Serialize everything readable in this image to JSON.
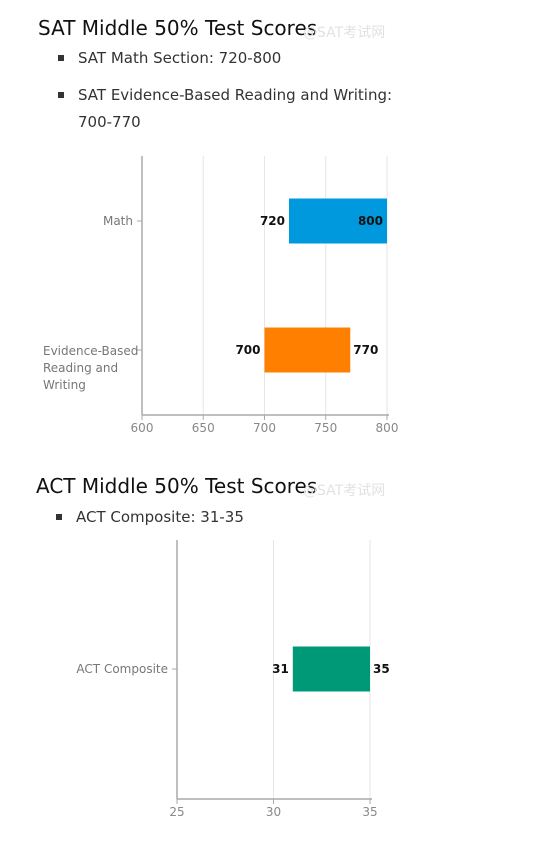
{
  "sat": {
    "title": "SAT Middle 50% Test Scores",
    "watermark": "@SAT考试网",
    "bullets": [
      "SAT Math Section: 720-800",
      "SAT Evidence-Based Reading and Writing: 700-770"
    ]
  },
  "act": {
    "title": "ACT Middle 50% Test Scores",
    "watermark": "@SAT考试网",
    "bullets": [
      "ACT Composite: 31-35"
    ]
  },
  "chart_data": [
    {
      "type": "bar",
      "orientation": "horizontal-range",
      "categories": [
        "Math",
        "Evidence-Based Reading and Writing"
      ],
      "ranges": [
        [
          720,
          800
        ],
        [
          700,
          770
        ]
      ],
      "colors": [
        "#0099dd",
        "#ff8000"
      ],
      "xlim": [
        600,
        800
      ],
      "xticks": [
        600,
        650,
        700,
        750,
        800
      ],
      "grid": true
    },
    {
      "type": "bar",
      "orientation": "horizontal-range",
      "categories": [
        "ACT Composite"
      ],
      "ranges": [
        [
          31,
          35
        ]
      ],
      "colors": [
        "#009977"
      ],
      "xlim": [
        25,
        35
      ],
      "xticks": [
        25,
        30,
        35
      ],
      "grid": true
    }
  ]
}
